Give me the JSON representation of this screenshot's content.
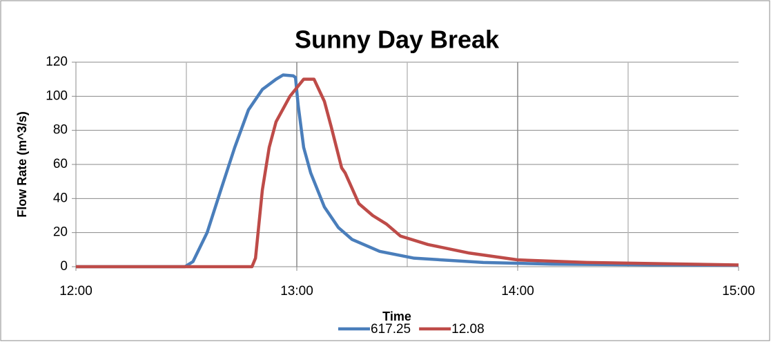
{
  "chart_data": {
    "type": "line",
    "title": "Sunny Day Break",
    "xlabel": "Time",
    "ylabel": "Flow Rate (m^3/s)",
    "xlim": [
      12,
      15
    ],
    "xticks": [
      {
        "value": 12,
        "label": "12:00"
      },
      {
        "value": 13,
        "label": "13:00"
      },
      {
        "value": 14,
        "label": "14:00"
      },
      {
        "value": 15,
        "label": "15:00"
      }
    ],
    "xminor_grid": [
      12.5,
      13.5,
      14.5
    ],
    "ylim": [
      0,
      120
    ],
    "yticks": [
      0,
      20,
      40,
      60,
      80,
      100,
      120
    ],
    "grid": true,
    "legend": "bottom",
    "series": [
      {
        "name": "617.25",
        "color": "#4a7ebb",
        "x": [
          12,
          12.494,
          12.53,
          12.594,
          12.656,
          12.719,
          12.781,
          12.844,
          12.906,
          12.938,
          12.984,
          12.994,
          13.006,
          13.031,
          13.063,
          13.125,
          13.188,
          13.25,
          13.375,
          13.531,
          13.844,
          14.156,
          15
        ],
        "values": [
          0,
          0,
          3,
          20,
          45,
          70,
          92,
          104,
          110,
          112.5,
          112,
          111,
          95,
          70,
          55,
          35,
          23,
          16,
          9,
          5,
          2.5,
          1.5,
          0.8
        ]
      },
      {
        "name": "12.08",
        "color": "#be4b48",
        "x": [
          12,
          12.797,
          12.813,
          12.844,
          12.875,
          12.906,
          12.969,
          13.031,
          13.078,
          13.125,
          13.156,
          13.203,
          13.219,
          13.281,
          13.344,
          13.406,
          13.469,
          13.594,
          13.781,
          14.0,
          14.313,
          15
        ],
        "values": [
          0,
          0,
          5,
          45,
          70,
          85,
          100,
          110,
          110,
          97,
          82,
          58,
          55,
          37,
          30,
          25,
          18,
          13,
          8,
          4,
          2.5,
          1
        ]
      }
    ]
  }
}
